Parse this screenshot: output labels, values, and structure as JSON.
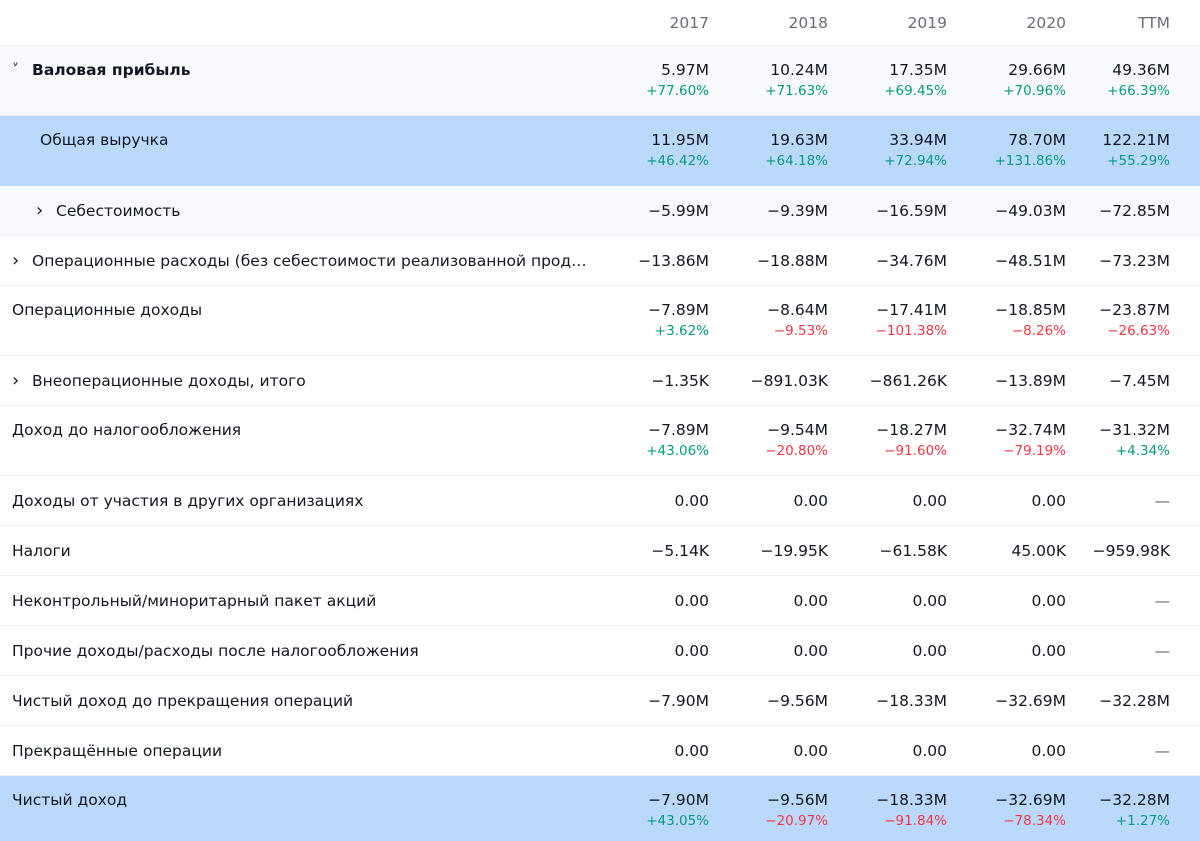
{
  "columns": [
    "2017",
    "2018",
    "2019",
    "2020",
    "TTM"
  ],
  "rows": [
    {
      "label": "Валовая прибыль",
      "expander": "chevron-down-icon",
      "bold": true,
      "highlight": "gray",
      "values": [
        "5.97M",
        "10.24M",
        "17.35M",
        "29.66M",
        "49.36M"
      ],
      "pct": [
        "+77.60%",
        "+71.63%",
        "+69.45%",
        "+70.96%",
        "+66.39%"
      ]
    },
    {
      "label": "Общая выручка",
      "indent": "child",
      "highlight": "blue",
      "values": [
        "11.95M",
        "19.63M",
        "33.94M",
        "78.70M",
        "122.21M"
      ],
      "pct": [
        "+46.42%",
        "+64.18%",
        "+72.94%",
        "+131.86%",
        "+55.29%"
      ]
    },
    {
      "label": "Себестоимость",
      "expander": "chevron-right-icon",
      "indent": "child-chev",
      "highlight": "gray",
      "values": [
        "−5.99M",
        "−9.39M",
        "−16.59M",
        "−49.03M",
        "−72.85M"
      ]
    },
    {
      "label": "Операционные расходы (без себестоимости реализованной продукции)",
      "expander": "chevron-right-icon",
      "values": [
        "−13.86M",
        "−18.88M",
        "−34.76M",
        "−48.51M",
        "−73.23M"
      ]
    },
    {
      "label": "Операционные доходы",
      "values": [
        "−7.89M",
        "−8.64M",
        "−17.41M",
        "−18.85M",
        "−23.87M"
      ],
      "pct": [
        "+3.62%",
        "−9.53%",
        "−101.38%",
        "−8.26%",
        "−26.63%"
      ]
    },
    {
      "label": "Внеоперационные доходы, итого",
      "expander": "chevron-right-icon",
      "values": [
        "−1.35K",
        "−891.03K",
        "−861.26K",
        "−13.89M",
        "−7.45M"
      ]
    },
    {
      "label": "Доход до налогообложения",
      "values": [
        "−7.89M",
        "−9.54M",
        "−18.27M",
        "−32.74M",
        "−31.32M"
      ],
      "pct": [
        "+43.06%",
        "−20.80%",
        "−91.60%",
        "−79.19%",
        "+4.34%"
      ]
    },
    {
      "label": "Доходы от участия в других организациях",
      "values": [
        "0.00",
        "0.00",
        "0.00",
        "0.00",
        "—"
      ]
    },
    {
      "label": "Налоги",
      "values": [
        "−5.14K",
        "−19.95K",
        "−61.58K",
        "45.00K",
        "−959.98K"
      ]
    },
    {
      "label": "Неконтрольный/миноритарный пакет акций",
      "values": [
        "0.00",
        "0.00",
        "0.00",
        "0.00",
        "—"
      ]
    },
    {
      "label": "Прочие доходы/расходы после налогообложения",
      "values": [
        "0.00",
        "0.00",
        "0.00",
        "0.00",
        "—"
      ]
    },
    {
      "label": "Чистый доход до прекращения операций",
      "values": [
        "−7.90M",
        "−9.56M",
        "−18.33M",
        "−32.69M",
        "−32.28M"
      ]
    },
    {
      "label": "Прекращённые операции",
      "values": [
        "0.00",
        "0.00",
        "0.00",
        "0.00",
        "—"
      ]
    },
    {
      "label": "Чистый доход",
      "highlight": "blue",
      "last": true,
      "values": [
        "−7.90M",
        "−9.56M",
        "−18.33M",
        "−32.69M",
        "−32.28M"
      ],
      "pct": [
        "+43.05%",
        "−20.97%",
        "−91.84%",
        "−78.34%",
        "+1.27%"
      ]
    }
  ],
  "colors": {
    "positive": "#089981",
    "negative": "#f23645",
    "highlight_blue": "#bbd9fb",
    "highlight_gray": "#f8f9fd"
  }
}
